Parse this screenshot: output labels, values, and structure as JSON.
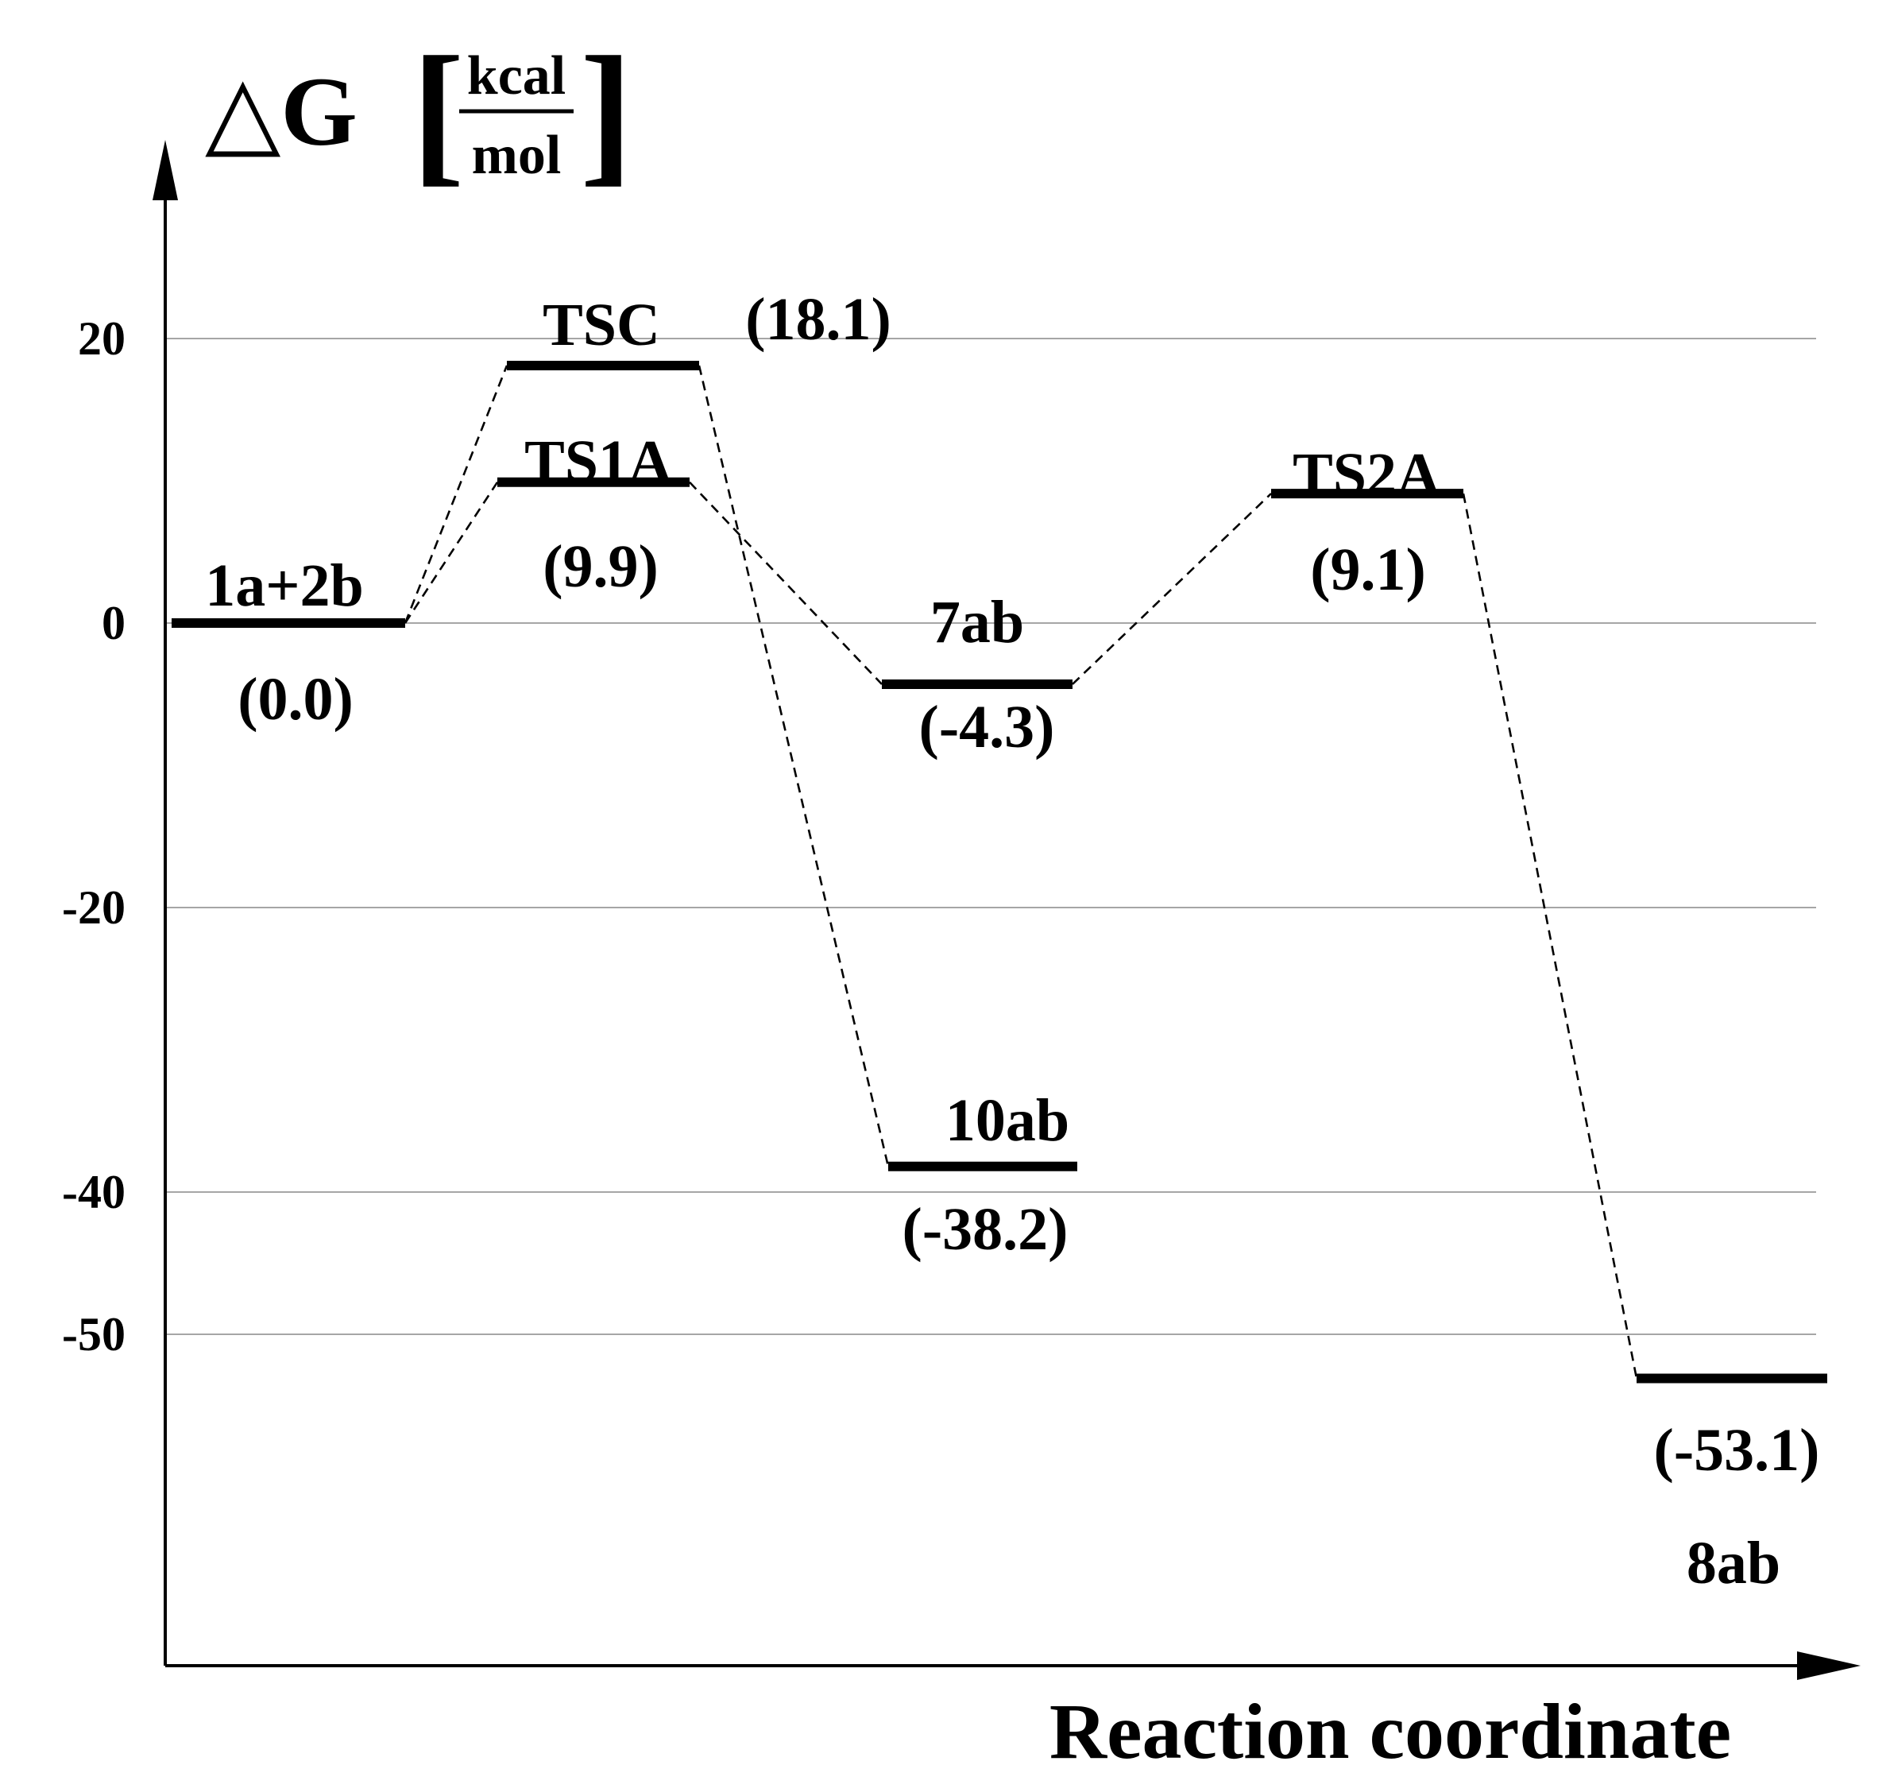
{
  "chart_data": {
    "type": "energy-profile",
    "ylabel": {
      "symbol": "△G",
      "unit_numerator": "kcal",
      "unit_denominator": "mol"
    },
    "xlabel": "Reaction coordinate",
    "y_ticks": [
      {
        "value": 20,
        "label": "20"
      },
      {
        "value": 0,
        "label": "0"
      },
      {
        "value": -20,
        "label": "-20"
      },
      {
        "value": -40,
        "label": "-40"
      },
      {
        "value": -50,
        "label": "-50"
      }
    ],
    "grid": true,
    "levels": [
      {
        "id": "r",
        "name": "1a+2b",
        "energy": 0.0,
        "value_label": "(0.0)",
        "position": 0
      },
      {
        "id": "tsc",
        "name": "TSC",
        "energy": 18.1,
        "value_label": "(18.1)",
        "position": 1
      },
      {
        "id": "ts1a",
        "name": "TS1A",
        "energy": 9.9,
        "value_label": "(9.9)",
        "position": 1
      },
      {
        "id": "i7",
        "name": "7ab",
        "energy": -4.3,
        "value_label": "(-4.3)",
        "position": 2
      },
      {
        "id": "p10",
        "name": "10ab",
        "energy": -38.2,
        "value_label": "(-38.2)",
        "position": 2
      },
      {
        "id": "ts2a",
        "name": "TS2A",
        "energy": 9.1,
        "value_label": "(9.1)",
        "position": 3
      },
      {
        "id": "p8",
        "name": "8ab",
        "energy": -53.1,
        "value_label": "(-53.1)",
        "position": 4
      }
    ],
    "paths": [
      [
        "r",
        "tsc",
        "p10"
      ],
      [
        "r",
        "ts1a",
        "i7",
        "ts2a",
        "p8"
      ]
    ]
  }
}
